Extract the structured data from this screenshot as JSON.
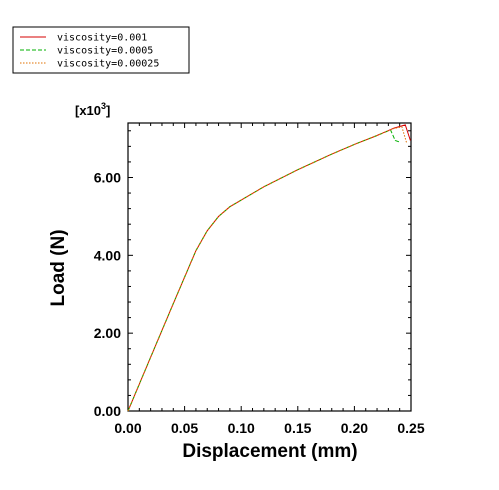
{
  "chart_data": {
    "type": "line",
    "title": "",
    "xlabel": "Displacement (mm)",
    "ylabel": "Load (N)",
    "y_multiplier": "[x10",
    "y_multiplier_exp": "3",
    "y_multiplier_close": "]",
    "xlim": [
      0,
      0.25
    ],
    "ylim": [
      0,
      7.4
    ],
    "xticks": [
      0,
      0.05,
      0.1,
      0.15,
      0.2,
      0.25
    ],
    "xtick_labels": [
      "0.00",
      "0.05",
      "0.10",
      "0.15",
      "0.20",
      "0.25"
    ],
    "yticks": [
      0,
      2,
      4,
      6
    ],
    "ytick_labels": [
      "0.00",
      "2.00",
      "4.00",
      "6.00"
    ],
    "grid": false,
    "legend_position": "top-left",
    "series": [
      {
        "name": "viscosity=0.001",
        "color": "#d40000",
        "dash": "solid",
        "x": [
          0,
          0.02,
          0.04,
          0.06,
          0.07,
          0.08,
          0.09,
          0.1,
          0.12,
          0.15,
          0.18,
          0.2,
          0.22,
          0.235,
          0.245,
          0.2495
        ],
        "y": [
          0,
          1.38,
          2.76,
          4.12,
          4.63,
          5.0,
          5.25,
          5.42,
          5.76,
          6.2,
          6.6,
          6.85,
          7.08,
          7.27,
          7.35,
          6.95
        ]
      },
      {
        "name": "viscosity=0.0005",
        "color": "#00b000",
        "dash": "dashed",
        "x": [
          0,
          0.02,
          0.04,
          0.06,
          0.07,
          0.08,
          0.09,
          0.1,
          0.12,
          0.15,
          0.18,
          0.2,
          0.22,
          0.232,
          0.236,
          0.241
        ],
        "y": [
          0,
          1.38,
          2.76,
          4.12,
          4.63,
          5.0,
          5.25,
          5.42,
          5.76,
          6.2,
          6.6,
          6.85,
          7.08,
          7.22,
          6.95,
          6.9
        ]
      },
      {
        "name": "viscosity=0.00025",
        "color": "#e07000",
        "dash": "dotted",
        "x": [
          0,
          0.02,
          0.04,
          0.06,
          0.07,
          0.08,
          0.09,
          0.1,
          0.12,
          0.15,
          0.18,
          0.2,
          0.22,
          0.235,
          0.242,
          0.246
        ],
        "y": [
          0,
          1.38,
          2.76,
          4.12,
          4.63,
          5.0,
          5.25,
          5.42,
          5.76,
          6.2,
          6.6,
          6.85,
          7.08,
          7.26,
          7.3,
          6.9
        ]
      }
    ]
  }
}
